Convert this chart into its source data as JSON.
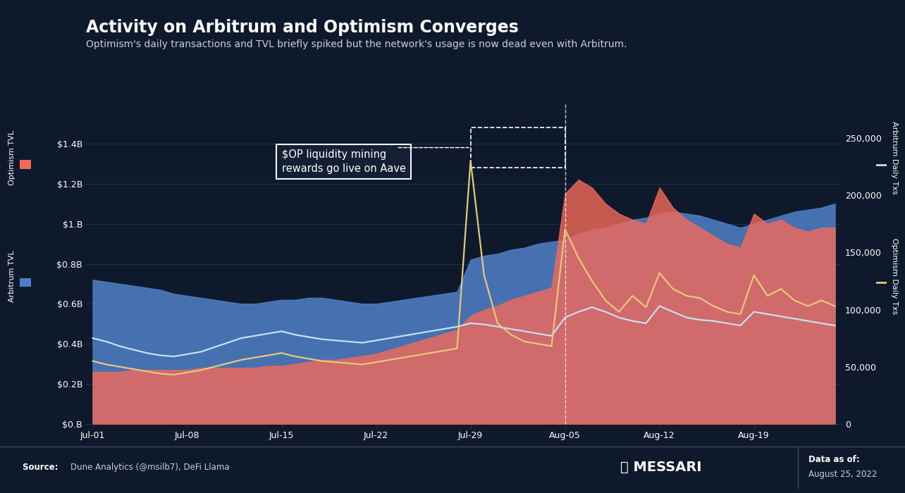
{
  "title": "Activity on Arbitrum and Optimism Converges",
  "subtitle": "Optimism's daily transactions and TVL briefly spiked but the network's usage is now dead even with Arbitrum.",
  "bg_color": "#0e1a2b",
  "plot_bg_color": "#0e1a2b",
  "grid_color": "#263347",
  "text_color": "#ffffff",
  "subtitle_color": "#c8d0d8",
  "arbitrum_tvl_color": "#4d7ec5",
  "optimism_tvl_color": "#f4695a",
  "arbitrum_txs_color": "#c8e0f0",
  "optimism_txs_color": "#e8c87a",
  "left_ylabel": "Optimism TVL",
  "left_ylabel2": "Arbitrum TVL",
  "right_ylabel": "Arbitrum Daily Txs",
  "right_ylabel2": "Optimism Daily Txs",
  "annotation_text": "$OP liquidity mining\nrewards go live on Aave",
  "ylim_left": [
    0,
    1.6
  ],
  "ylim_right": [
    0,
    280000
  ],
  "yticks_left": [
    0.0,
    0.2,
    0.4,
    0.6,
    0.8,
    1.0,
    1.2,
    1.4
  ],
  "ytick_labels_left": [
    "$0.B",
    "$0.2B",
    "$0.4B",
    "$0.6B",
    "$0.8B",
    "$1.B",
    "$1.2B",
    "$1.4B"
  ],
  "yticks_right": [
    0,
    50000,
    100000,
    150000,
    200000,
    250000
  ],
  "ytick_labels_right": [
    "0",
    "50,000",
    "100,000",
    "150,000",
    "200,000",
    "250,000"
  ],
  "xtick_positions": [
    0,
    7,
    14,
    21,
    28,
    35,
    42,
    49
  ],
  "xtick_labels": [
    "Jul-01",
    "Jul-08",
    "Jul-15",
    "Jul-22",
    "Jul-29",
    "Aug-05",
    "Aug-12",
    "Aug-19"
  ],
  "n_days": 56,
  "arb_tvl": [
    0.72,
    0.71,
    0.7,
    0.69,
    0.68,
    0.67,
    0.65,
    0.64,
    0.63,
    0.62,
    0.61,
    0.6,
    0.6,
    0.61,
    0.62,
    0.62,
    0.63,
    0.63,
    0.62,
    0.61,
    0.6,
    0.6,
    0.61,
    0.62,
    0.63,
    0.64,
    0.65,
    0.66,
    0.82,
    0.84,
    0.85,
    0.87,
    0.88,
    0.9,
    0.91,
    0.92,
    0.95,
    0.97,
    0.98,
    1.0,
    1.02,
    1.03,
    1.05,
    1.06,
    1.05,
    1.04,
    1.02,
    1.0,
    0.98,
    1.0,
    1.02,
    1.04,
    1.06,
    1.07,
    1.08,
    1.1
  ],
  "opt_tvl": [
    0.26,
    0.26,
    0.26,
    0.27,
    0.27,
    0.27,
    0.27,
    0.27,
    0.28,
    0.28,
    0.28,
    0.28,
    0.28,
    0.29,
    0.29,
    0.3,
    0.31,
    0.32,
    0.32,
    0.33,
    0.34,
    0.35,
    0.37,
    0.39,
    0.41,
    0.43,
    0.45,
    0.47,
    0.54,
    0.57,
    0.59,
    0.62,
    0.64,
    0.66,
    0.68,
    1.15,
    1.22,
    1.18,
    1.1,
    1.05,
    1.02,
    1.0,
    1.18,
    1.08,
    1.02,
    0.98,
    0.94,
    0.9,
    0.88,
    1.05,
    1.0,
    1.02,
    0.98,
    0.96,
    0.98,
    0.98
  ],
  "arb_txs": [
    75000,
    72000,
    68000,
    65000,
    62000,
    60000,
    59000,
    61000,
    63000,
    67000,
    71000,
    75000,
    77000,
    79000,
    81000,
    78000,
    76000,
    74000,
    73000,
    72000,
    71000,
    73000,
    75000,
    77000,
    79000,
    81000,
    83000,
    85000,
    88000,
    87000,
    85000,
    83000,
    81000,
    79000,
    77000,
    93000,
    98000,
    102000,
    98000,
    93000,
    90000,
    88000,
    103000,
    98000,
    93000,
    91000,
    90000,
    88000,
    86000,
    98000,
    96000,
    94000,
    92000,
    90000,
    88000,
    86000
  ],
  "opt_txs": [
    55000,
    52000,
    50000,
    48000,
    46000,
    44000,
    43000,
    45000,
    47000,
    50000,
    53000,
    56000,
    58000,
    60000,
    62000,
    59000,
    57000,
    55000,
    54000,
    53000,
    52000,
    54000,
    56000,
    58000,
    60000,
    62000,
    64000,
    66000,
    230000,
    130000,
    88000,
    78000,
    72000,
    70000,
    68000,
    170000,
    145000,
    125000,
    108000,
    98000,
    112000,
    102000,
    132000,
    118000,
    112000,
    110000,
    103000,
    98000,
    96000,
    130000,
    112000,
    118000,
    108000,
    103000,
    108000,
    103000
  ]
}
